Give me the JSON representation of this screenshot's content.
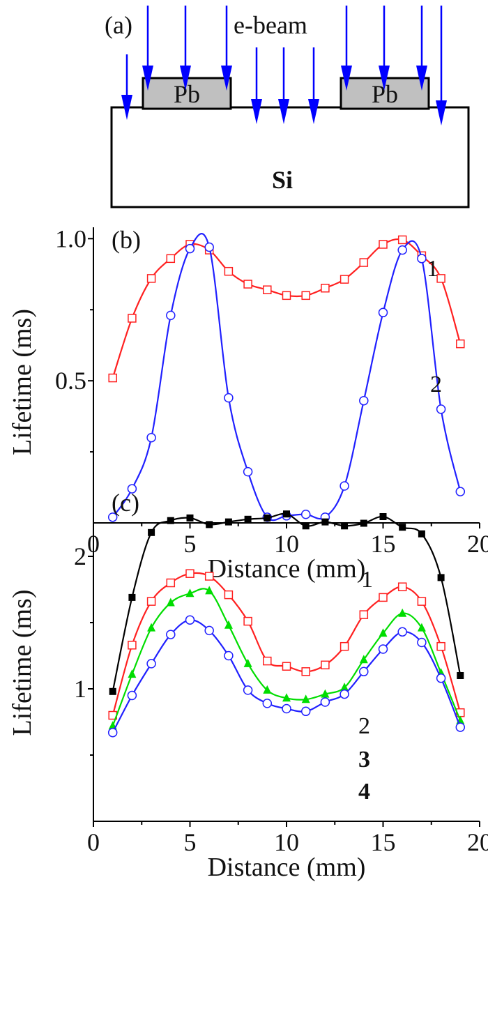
{
  "diagram": {
    "panel_label": "(a)",
    "beam_label": "e-beam",
    "layer_labels": [
      "Pb",
      "Pb"
    ],
    "substrate_label": "Si",
    "colors": {
      "arrow": "#0000ff",
      "pb_fill": "#c0c0c0",
      "outline": "#000000"
    }
  },
  "chart_data": [
    {
      "type": "line",
      "panel_label": "(b)",
      "xlabel": "Distance (mm)",
      "ylabel": "Lifetime (ms)",
      "xlim": [
        0,
        20
      ],
      "ylim": [
        0,
        1.04
      ],
      "xticks": [
        "0",
        "5",
        "10",
        "15",
        "20"
      ],
      "xtick_values": [
        0,
        5,
        10,
        15,
        20
      ],
      "yticks": [
        "0.5",
        "1.0"
      ],
      "ytick_values": [
        0.5,
        1.0
      ],
      "grid": false,
      "x": [
        1,
        2,
        3,
        4,
        5,
        6,
        7,
        8,
        9,
        10,
        11,
        12,
        13,
        14,
        15,
        16,
        17,
        18,
        19
      ],
      "series": [
        {
          "label": "1",
          "color": "#ff2020",
          "marker": "open-square",
          "values": [
            0.51,
            0.72,
            0.86,
            0.93,
            0.98,
            0.96,
            0.885,
            0.84,
            0.82,
            0.8,
            0.8,
            0.826,
            0.857,
            0.916,
            0.98,
            0.996,
            0.94,
            0.86,
            0.63
          ]
        },
        {
          "label": "2",
          "color": "#2020ff",
          "marker": "open-circle",
          "values": [
            0.02,
            0.12,
            0.3,
            0.73,
            0.965,
            0.97,
            0.44,
            0.18,
            0.02,
            0.025,
            0.03,
            0.02,
            0.13,
            0.43,
            0.74,
            0.96,
            0.93,
            0.4,
            0.11
          ]
        }
      ]
    },
    {
      "type": "line",
      "panel_label": "(c)",
      "xlabel": "Distance (mm)",
      "ylabel": "Lifetime (ms)",
      "xlim": [
        0,
        20
      ],
      "ylim": [
        0,
        2.5
      ],
      "xticks": [
        "0",
        "5",
        "10",
        "15",
        "20"
      ],
      "xtick_values": [
        0,
        5,
        10,
        15,
        20
      ],
      "yticks": [
        "1",
        "2"
      ],
      "ytick_values": [
        1,
        2
      ],
      "grid": false,
      "x": [
        1,
        2,
        3,
        4,
        5,
        6,
        7,
        8,
        9,
        10,
        11,
        12,
        13,
        14,
        15,
        16,
        17,
        18,
        19
      ],
      "series": [
        {
          "label": "1",
          "color": "#000000",
          "marker": "filled-square",
          "values": [
            0.98,
            1.69,
            2.18,
            2.27,
            2.29,
            2.24,
            2.26,
            2.28,
            2.29,
            2.32,
            2.23,
            2.26,
            2.23,
            2.25,
            2.3,
            2.22,
            2.17,
            1.84,
            1.1
          ]
        },
        {
          "label": "2",
          "color": "#ff2020",
          "marker": "open-square",
          "values": [
            0.8,
            1.33,
            1.66,
            1.8,
            1.87,
            1.85,
            1.71,
            1.51,
            1.21,
            1.17,
            1.13,
            1.18,
            1.32,
            1.56,
            1.69,
            1.77,
            1.66,
            1.32,
            0.82
          ]
        },
        {
          "label": "3",
          "color": "#00dd00",
          "marker": "filled-triangle",
          "values": [
            0.72,
            1.11,
            1.46,
            1.65,
            1.72,
            1.74,
            1.48,
            1.19,
            0.99,
            0.93,
            0.92,
            0.96,
            1.01,
            1.22,
            1.42,
            1.57,
            1.46,
            1.12,
            0.76
          ]
        },
        {
          "label": "4",
          "color": "#2020ff",
          "marker": "open-circle",
          "values": [
            0.67,
            0.95,
            1.19,
            1.41,
            1.52,
            1.44,
            1.25,
            0.99,
            0.89,
            0.85,
            0.83,
            0.9,
            0.96,
            1.13,
            1.3,
            1.43,
            1.35,
            1.08,
            0.71
          ]
        }
      ]
    }
  ]
}
